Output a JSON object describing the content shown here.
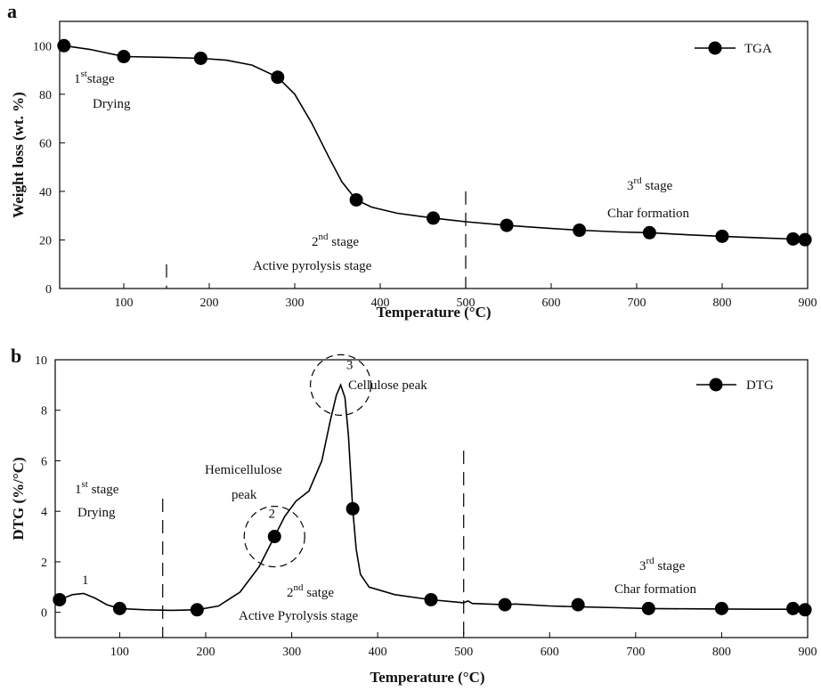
{
  "chart_data": [
    {
      "type": "line",
      "panel": "a",
      "xlabel": "Temperature (°C)",
      "ylabel": "Weight loss (wt. %)",
      "xlim": [
        25,
        900
      ],
      "ylim": [
        0,
        110
      ],
      "xticks": [
        100,
        200,
        300,
        400,
        500,
        600,
        700,
        800,
        900
      ],
      "yticks": [
        0,
        20,
        40,
        60,
        80,
        100
      ],
      "legend": "top-right",
      "series": [
        {
          "name": "TGA",
          "curve": [
            [
              30,
              100
            ],
            [
              60,
              98.5
            ],
            [
              100,
              95.5
            ],
            [
              150,
              95.2
            ],
            [
              190,
              94.8
            ],
            [
              220,
              94.0
            ],
            [
              250,
              92.0
            ],
            [
              280,
              87.0
            ],
            [
              300,
              80.0
            ],
            [
              320,
              68.0
            ],
            [
              340,
              54.0
            ],
            [
              355,
              44.0
            ],
            [
              372,
              36.5
            ],
            [
              390,
              33.5
            ],
            [
              420,
              31.0
            ],
            [
              462,
              29.0
            ],
            [
              500,
              27.5
            ],
            [
              548,
              26.0
            ],
            [
              600,
              24.7
            ],
            [
              633,
              24.0
            ],
            [
              680,
              23.3
            ],
            [
              715,
              23.0
            ],
            [
              760,
              22.1
            ],
            [
              800,
              21.5
            ],
            [
              850,
              20.8
            ],
            [
              883,
              20.4
            ],
            [
              898,
              20.1
            ]
          ],
          "markers": [
            [
              30,
              100
            ],
            [
              100,
              95.5
            ],
            [
              190,
              94.8
            ],
            [
              280,
              87.0
            ],
            [
              372,
              36.5
            ],
            [
              462,
              29.0
            ],
            [
              548,
              26.0
            ],
            [
              633,
              24.0
            ],
            [
              715,
              23.0
            ],
            [
              800,
              21.5
            ],
            [
              883,
              20.4
            ],
            [
              897,
              20.1
            ]
          ]
        }
      ],
      "stage_dividers": [
        150,
        500
      ],
      "annotations": [
        {
          "sup_pre": "1",
          "sup": "st",
          "sup_post": "stage",
          "line2": "Drying"
        },
        {
          "sup_pre": "2",
          "sup": "nd",
          "sup_post": " stage",
          "line2": "Active pyrolysis stage"
        },
        {
          "sup_pre": "3",
          "sup": "rd",
          "sup_post": " stage",
          "line2": "Char formation"
        }
      ]
    },
    {
      "type": "line",
      "panel": "b",
      "xlabel": "Temperature (°C)",
      "ylabel": "DTG (%/°C)",
      "xlim": [
        25,
        900
      ],
      "ylim": [
        -1,
        10
      ],
      "xticks": [
        100,
        200,
        300,
        400,
        500,
        600,
        700,
        800,
        900
      ],
      "yticks": [
        0,
        2,
        4,
        6,
        8,
        10
      ],
      "legend": "top-right",
      "series": [
        {
          "name": "DTG",
          "curve": [
            [
              30,
              0.5
            ],
            [
              45,
              0.7
            ],
            [
              58,
              0.75
            ],
            [
              72,
              0.55
            ],
            [
              85,
              0.3
            ],
            [
              100,
              0.15
            ],
            [
              130,
              0.1
            ],
            [
              160,
              0.08
            ],
            [
              190,
              0.1
            ],
            [
              215,
              0.25
            ],
            [
              240,
              0.8
            ],
            [
              262,
              1.8
            ],
            [
              280,
              3.0
            ],
            [
              292,
              3.8
            ],
            [
              305,
              4.4
            ],
            [
              320,
              4.8
            ],
            [
              335,
              6.0
            ],
            [
              345,
              7.6
            ],
            [
              352,
              8.6
            ],
            [
              357,
              9.0
            ],
            [
              362,
              8.5
            ],
            [
              366,
              7.0
            ],
            [
              371,
              4.1
            ],
            [
              375,
              2.5
            ],
            [
              380,
              1.5
            ],
            [
              390,
              1.0
            ],
            [
              420,
              0.7
            ],
            [
              462,
              0.5
            ],
            [
              500,
              0.38
            ],
            [
              505,
              0.45
            ],
            [
              510,
              0.35
            ],
            [
              548,
              0.3
            ],
            [
              560,
              0.33
            ],
            [
              600,
              0.25
            ],
            [
              633,
              0.22
            ],
            [
              680,
              0.18
            ],
            [
              715,
              0.15
            ],
            [
              760,
              0.14
            ],
            [
              800,
              0.13
            ],
            [
              850,
              0.12
            ],
            [
              883,
              0.12
            ],
            [
              898,
              0.1
            ]
          ],
          "markers": [
            [
              30,
              0.5
            ],
            [
              100,
              0.15
            ],
            [
              190,
              0.1
            ],
            [
              280,
              3.0
            ],
            [
              371,
              4.1
            ],
            [
              462,
              0.5
            ],
            [
              548,
              0.3
            ],
            [
              633,
              0.3
            ],
            [
              715,
              0.15
            ],
            [
              800,
              0.15
            ],
            [
              883,
              0.15
            ],
            [
              897,
              0.1
            ]
          ]
        }
      ],
      "stage_dividers": [
        150,
        500
      ],
      "peak_circles": [
        {
          "label": "2",
          "x": 280,
          "y": 3.0
        },
        {
          "label": "3",
          "x": 357,
          "y": 9.0
        }
      ],
      "annotations": [
        {
          "text": "1",
          "x": 58,
          "y": 1.2
        },
        {
          "text": "Hemicellulose",
          "line2": "peak"
        },
        {
          "text": "Cellulose peak"
        },
        {
          "sup_pre": "1",
          "sup": "st",
          "sup_post": " stage",
          "line2": "Drying"
        },
        {
          "sup_pre": "2",
          "sup": "nd",
          "sup_post": " satge",
          "line2": "Active Pyrolysis stage"
        },
        {
          "sup_pre": "3",
          "sup": "rd",
          "sup_post": " stage",
          "line2": "Char formation"
        }
      ]
    }
  ]
}
